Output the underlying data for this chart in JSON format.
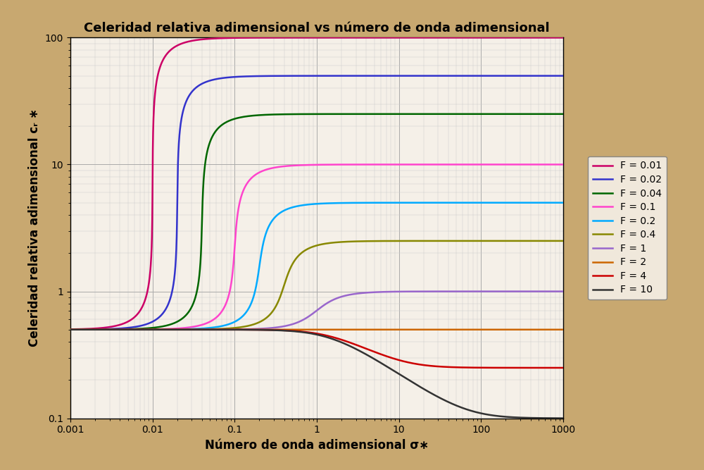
{
  "title": "Celeridad relativa adimensional vs número de onda adimensional",
  "xlabel": "Número de onda adimensional σ∗",
  "ylabel": "Celeridad relativa adimensional cᵣ ∗",
  "background_outer": "#C8A870",
  "background_inner": "#F5F0E8",
  "grid_major_color": "#AAAAAA",
  "grid_minor_color": "#CCCCCC",
  "Froude_numbers": [
    0.01,
    0.02,
    0.04,
    0.1,
    0.2,
    0.4,
    1.0,
    2.0,
    4.0,
    10.0
  ],
  "colors": [
    "#CC0066",
    "#3333CC",
    "#006600",
    "#FF44CC",
    "#00AAFF",
    "#888800",
    "#9966CC",
    "#CC6600",
    "#CC0000",
    "#333333"
  ],
  "legend_labels": [
    "F = 0.01",
    "F = 0.02",
    "F = 0.04",
    "F = 0.1",
    "F = 0.2",
    "F = 0.4",
    "F = 1",
    "F = 2",
    "F = 4",
    "F = 10"
  ],
  "linewidth": 1.8,
  "xlim": [
    0.001,
    1000
  ],
  "ylim": [
    0.1,
    100
  ],
  "x_ticks": [
    0.001,
    0.01,
    0.1,
    1,
    10,
    100,
    1000
  ],
  "x_tick_labels": [
    "0.001",
    "0.01",
    "0.1",
    "1",
    "10",
    "100",
    "1000"
  ],
  "y_ticks": [
    0.1,
    1,
    10,
    100
  ],
  "y_tick_labels": [
    "0.1",
    "1",
    "10",
    "100"
  ],
  "title_fontsize": 13,
  "label_fontsize": 12,
  "tick_fontsize": 10,
  "legend_fontsize": 10,
  "chezy_coeff": 1.0,
  "sigma_points": 5000
}
